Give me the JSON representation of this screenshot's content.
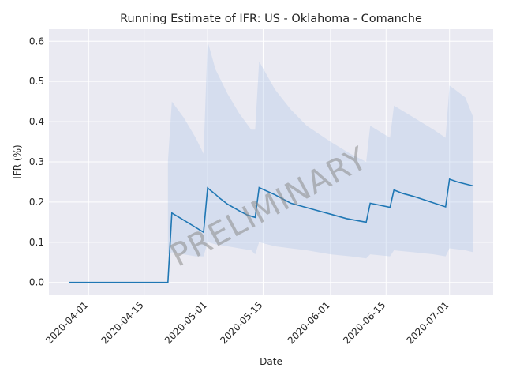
{
  "chart_data": {
    "type": "line",
    "title": "Running Estimate of IFR: US - Oklahoma - Comanche",
    "xlabel": "Date",
    "ylabel": "IFR (%)",
    "watermark": "PRELIMINARY",
    "x_ticks": [
      "2020-04-01",
      "2020-04-15",
      "2020-05-01",
      "2020-05-15",
      "2020-06-01",
      "2020-06-15",
      "2020-07-01"
    ],
    "y_ticks": [
      "0.0",
      "0.1",
      "0.2",
      "0.3",
      "0.4",
      "0.5",
      "0.6"
    ],
    "ylim": [
      -0.03,
      0.63
    ],
    "xlim": [
      "2020-03-22",
      "2020-07-12"
    ],
    "grid": true,
    "colors": {
      "line": "#1f77b4",
      "band": "#aec7e8",
      "background": "#eaeaf2",
      "grid": "#ffffff"
    },
    "series": [
      {
        "x": [
          "2020-03-27",
          "2020-04-21",
          "2020-04-22",
          "2020-04-25",
          "2020-04-28",
          "2020-04-30",
          "2020-05-01",
          "2020-05-03",
          "2020-05-04",
          "2020-05-06",
          "2020-05-09",
          "2020-05-11",
          "2020-05-13",
          "2020-05-14",
          "2020-05-18",
          "2020-05-22",
          "2020-05-29",
          "2020-06-01",
          "2020-06-05",
          "2020-06-10",
          "2020-06-11",
          "2020-06-16",
          "2020-06-17",
          "2020-06-19",
          "2020-06-22",
          "2020-06-26",
          "2020-06-30",
          "2020-07-01",
          "2020-07-03",
          "2020-07-07"
        ],
        "y": [
          0.0,
          0.0,
          0.173,
          0.155,
          0.137,
          0.125,
          0.235,
          0.219,
          0.21,
          0.195,
          0.178,
          0.168,
          0.162,
          0.236,
          0.218,
          0.197,
          0.178,
          0.17,
          0.159,
          0.15,
          0.197,
          0.187,
          0.23,
          0.222,
          0.214,
          0.201,
          0.188,
          0.257,
          0.25,
          0.24
        ]
      },
      {
        "x": [
          "2020-04-21",
          "2020-04-22",
          "2020-04-25",
          "2020-04-28",
          "2020-04-30",
          "2020-05-01",
          "2020-05-03",
          "2020-05-06",
          "2020-05-09",
          "2020-05-12",
          "2020-05-13",
          "2020-05-14",
          "2020-05-18",
          "2020-05-22",
          "2020-05-26",
          "2020-06-01",
          "2020-06-06",
          "2020-06-10",
          "2020-06-11",
          "2020-06-16",
          "2020-06-17",
          "2020-06-22",
          "2020-06-27",
          "2020-06-30",
          "2020-07-01",
          "2020-07-05",
          "2020-07-07"
        ],
        "y_upper": [
          0.3,
          0.45,
          0.41,
          0.36,
          0.32,
          0.6,
          0.53,
          0.47,
          0.42,
          0.38,
          0.38,
          0.55,
          0.48,
          0.43,
          0.39,
          0.35,
          0.32,
          0.3,
          0.39,
          0.36,
          0.44,
          0.41,
          0.38,
          0.36,
          0.49,
          0.46,
          0.41
        ],
        "y_lower": [
          0.07,
          0.075,
          0.07,
          0.065,
          0.065,
          0.1,
          0.095,
          0.09,
          0.085,
          0.08,
          0.07,
          0.1,
          0.09,
          0.085,
          0.08,
          0.07,
          0.065,
          0.06,
          0.07,
          0.065,
          0.08,
          0.075,
          0.07,
          0.065,
          0.085,
          0.08,
          0.075
        ]
      }
    ]
  }
}
